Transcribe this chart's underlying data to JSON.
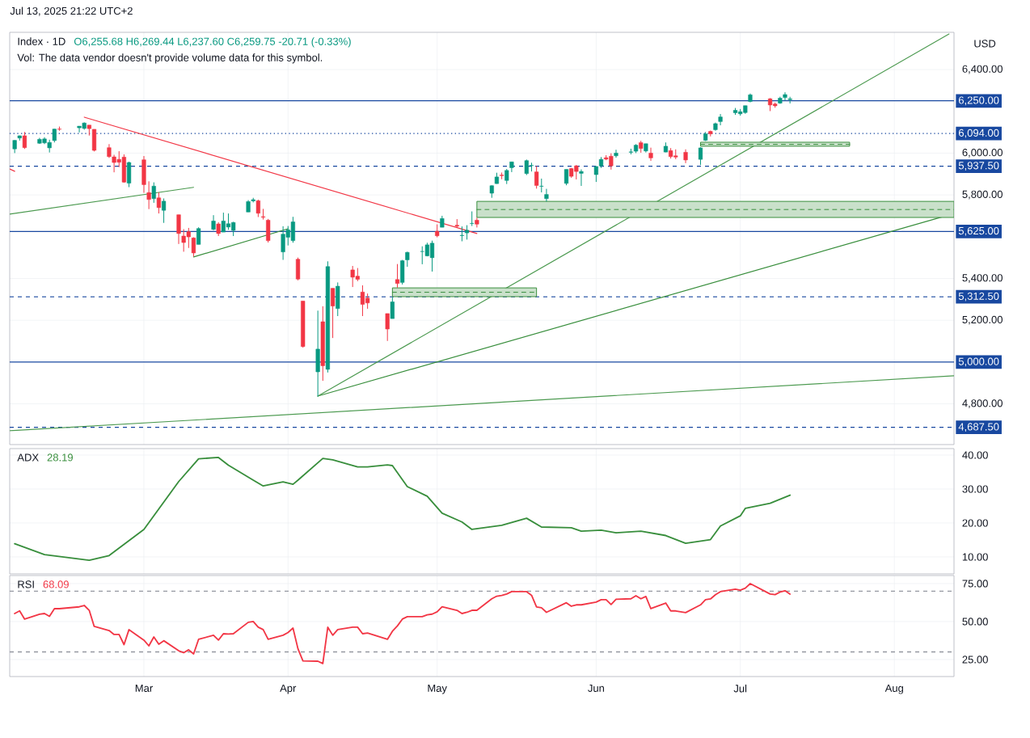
{
  "chart_data": [
    {
      "type": "candlestick",
      "title": "Index · 1D",
      "ylabel": "USD",
      "annotations": [
        "O6,255.68 H6,269.44 L6,237.60 C6,259.75 -20.71 (-0.33%)",
        "Vol: The data vendor doesn't provide volume data for this symbol.",
        "Jul 13, 2025 21:22 UTC+2"
      ],
      "x": [
        "2025-02-05",
        "2025-02-06",
        "2025-02-07",
        "2025-02-10",
        "2025-02-11",
        "2025-02-12",
        "2025-02-13",
        "2025-02-14",
        "2025-02-18",
        "2025-02-19",
        "2025-02-20",
        "2025-02-21",
        "2025-02-24",
        "2025-02-25",
        "2025-02-26",
        "2025-02-27",
        "2025-02-28",
        "2025-03-03",
        "2025-03-04",
        "2025-03-05",
        "2025-03-06",
        "2025-03-07",
        "2025-03-10",
        "2025-03-11",
        "2025-03-12",
        "2025-03-13",
        "2025-03-14",
        "2025-03-17",
        "2025-03-18",
        "2025-03-19",
        "2025-03-20",
        "2025-03-21",
        "2025-03-24",
        "2025-03-25",
        "2025-03-26",
        "2025-03-27",
        "2025-03-28",
        "2025-03-31",
        "2025-04-01",
        "2025-04-02",
        "2025-04-03",
        "2025-04-04",
        "2025-04-07",
        "2025-04-08",
        "2025-04-09",
        "2025-04-10",
        "2025-04-11",
        "2025-04-14",
        "2025-04-15",
        "2025-04-16",
        "2025-04-17",
        "2025-04-21",
        "2025-04-22",
        "2025-04-23",
        "2025-04-24",
        "2025-04-25",
        "2025-04-28",
        "2025-04-29",
        "2025-04-30",
        "2025-05-01",
        "2025-05-02",
        "2025-05-05",
        "2025-05-06",
        "2025-05-07",
        "2025-05-08",
        "2025-05-09",
        "2025-05-12",
        "2025-05-13",
        "2025-05-14",
        "2025-05-15",
        "2025-05-16",
        "2025-05-19",
        "2025-05-20",
        "2025-05-21",
        "2025-05-22",
        "2025-05-23",
        "2025-05-27",
        "2025-05-28",
        "2025-05-29",
        "2025-05-30",
        "2025-06-02",
        "2025-06-03",
        "2025-06-04",
        "2025-06-05",
        "2025-06-06",
        "2025-06-09",
        "2025-06-10",
        "2025-06-11",
        "2025-06-12",
        "2025-06-13",
        "2025-06-16",
        "2025-06-17",
        "2025-06-18",
        "2025-06-20",
        "2025-06-23",
        "2025-06-24",
        "2025-06-25",
        "2025-06-26",
        "2025-06-27",
        "2025-06-30",
        "2025-07-01",
        "2025-07-02",
        "2025-07-03",
        "2025-07-07",
        "2025-07-08",
        "2025-07-09",
        "2025-07-10",
        "2025-07-11"
      ],
      "ohlc": [
        [
          6020,
          6062,
          6000,
          6061
        ],
        [
          6072,
          6084,
          6060,
          6083
        ],
        [
          6083,
          6101,
          6020,
          6026
        ],
        [
          6047,
          6073,
          6044,
          6066
        ],
        [
          6049,
          6076,
          6043,
          6068
        ],
        [
          6025,
          6064,
          6003,
          6051
        ],
        [
          6060,
          6116,
          6051,
          6115
        ],
        [
          6115,
          6127,
          6107,
          6114
        ],
        [
          6121,
          6129,
          6099,
          6129
        ],
        [
          6118,
          6147,
          6112,
          6144
        ],
        [
          6134,
          6134,
          6084,
          6117
        ],
        [
          6114,
          6114,
          6008,
          6013
        ],
        [
          6026,
          6043,
          5977,
          5983
        ],
        [
          5982,
          5992,
          5908,
          5955
        ],
        [
          5970,
          6009,
          5933,
          5956
        ],
        [
          5981,
          5994,
          5858,
          5861
        ],
        [
          5856,
          5959,
          5837,
          5955
        ],
        [
          5968,
          5986,
          5810,
          5849
        ],
        [
          5811,
          5865,
          5732,
          5778
        ],
        [
          5782,
          5860,
          5762,
          5842
        ],
        [
          5786,
          5812,
          5711,
          5739
        ],
        [
          5726,
          5783,
          5666,
          5770
        ],
        [
          5705,
          5705,
          5565,
          5615
        ],
        [
          5603,
          5636,
          5528,
          5572
        ],
        [
          5624,
          5642,
          5546,
          5599
        ],
        [
          5594,
          5597,
          5505,
          5522
        ],
        [
          5563,
          5645,
          5563,
          5639
        ],
        [
          5635,
          5703,
          5631,
          5675
        ],
        [
          5661,
          5669,
          5603,
          5615
        ],
        [
          5622,
          5715,
          5622,
          5675
        ],
        [
          5646,
          5711,
          5633,
          5662
        ],
        [
          5630,
          5671,
          5603,
          5668
        ],
        [
          5718,
          5775,
          5718,
          5768
        ],
        [
          5771,
          5786,
          5764,
          5777
        ],
        [
          5772,
          5777,
          5694,
          5712
        ],
        [
          5696,
          5733,
          5682,
          5693
        ],
        [
          5679,
          5685,
          5572,
          5581
        ],
        [
          5527,
          5650,
          5489,
          5612
        ],
        [
          5597,
          5651,
          5558,
          5633
        ],
        [
          5581,
          5695,
          5571,
          5671
        ],
        [
          5492,
          5500,
          5391,
          5397
        ],
        [
          5292,
          5292,
          5069,
          5074
        ],
        [
          4953,
          5246,
          4835,
          5062
        ],
        [
          5193,
          5267,
          4910,
          4982
        ],
        [
          4965,
          5482,
          4950,
          5457
        ],
        [
          5353,
          5353,
          5115,
          5268
        ],
        [
          5256,
          5381,
          5220,
          5363
        ],
        [
          5441,
          5460,
          5359,
          5406
        ],
        [
          5411,
          5450,
          5387,
          5396
        ],
        [
          5335,
          5367,
          5220,
          5276
        ],
        [
          5306,
          5328,
          5255,
          5283
        ],
        [
          5232,
          5232,
          5101,
          5158
        ],
        [
          5208,
          5309,
          5208,
          5288
        ],
        [
          5395,
          5469,
          5356,
          5376
        ],
        [
          5381,
          5489,
          5371,
          5485
        ],
        [
          5489,
          5528,
          5456,
          5525
        ],
        [
          5529,
          5554,
          5468,
          5529
        ],
        [
          5508,
          5571,
          5506,
          5561
        ],
        [
          5499,
          5581,
          5433,
          5569
        ],
        [
          5626,
          5659,
          5597,
          5604
        ],
        [
          5645,
          5700,
          5645,
          5687
        ],
        [
          5655,
          5684,
          5642,
          5650
        ],
        [
          5605,
          5649,
          5578,
          5607
        ],
        [
          5618,
          5655,
          5586,
          5631
        ],
        [
          5663,
          5721,
          5651,
          5664
        ],
        [
          5679,
          5691,
          5644,
          5660
        ],
        [
          5808,
          5846,
          5786,
          5844
        ],
        [
          5854,
          5906,
          5853,
          5886
        ],
        [
          5895,
          5907,
          5875,
          5892
        ],
        [
          5869,
          5924,
          5852,
          5917
        ],
        [
          5930,
          5959,
          5909,
          5958
        ],
        [
          5902,
          5969,
          5895,
          5964
        ],
        [
          5940,
          5954,
          5912,
          5941
        ],
        [
          5910,
          5938,
          5830,
          5845
        ],
        [
          5841,
          5878,
          5812,
          5842
        ],
        [
          5782,
          5829,
          5768,
          5802
        ],
        [
          5855,
          5922,
          5846,
          5922
        ],
        [
          5926,
          5929,
          5882,
          5889
        ],
        [
          5939,
          5943,
          5874,
          5912
        ],
        [
          5903,
          5922,
          5843,
          5912
        ],
        [
          5897,
          5937,
          5862,
          5936
        ],
        [
          5939,
          5981,
          5929,
          5970
        ],
        [
          5978,
          5990,
          5966,
          5971
        ],
        [
          5985,
          5999,
          5921,
          5939
        ],
        [
          5987,
          6016,
          5978,
          6000
        ],
        [
          6004,
          6021,
          5994,
          6006
        ],
        [
          6009,
          6043,
          6000,
          6038
        ],
        [
          6050,
          6059,
          6002,
          6022
        ],
        [
          6010,
          6045,
          6003,
          6045
        ],
        [
          6000,
          6026,
          5963,
          5977
        ],
        [
          6005,
          6051,
          6004,
          6033
        ],
        [
          6012,
          6024,
          5974,
          5983
        ],
        [
          5987,
          6018,
          5971,
          5981
        ],
        [
          6004,
          6018,
          5952,
          5967
        ],
        [
          5970,
          6028,
          5943,
          6025
        ],
        [
          6061,
          6101,
          6058,
          6092
        ],
        [
          6104,
          6108,
          6080,
          6092
        ],
        [
          6112,
          6146,
          6107,
          6141
        ],
        [
          6151,
          6187,
          6133,
          6173
        ],
        [
          6193,
          6216,
          6183,
          6205
        ],
        [
          6188,
          6211,
          6179,
          6198
        ],
        [
          6194,
          6227,
          6188,
          6227
        ],
        [
          6247,
          6285,
          6243,
          6279
        ],
        [
          6260,
          6263,
          6201,
          6230
        ],
        [
          6235,
          6242,
          6217,
          6226
        ],
        [
          6239,
          6270,
          6236,
          6263
        ],
        [
          6266,
          6291,
          6251,
          6280
        ],
        [
          6255.68,
          6269.44,
          6237.6,
          6259.75
        ]
      ],
      "series": [
        {
          "type": "line",
          "color": "#f23645",
          "x": [
            "2025-02-19",
            "2025-05-09"
          ],
          "values": [
            6172,
            5615
          ]
        },
        {
          "type": "line",
          "color": "#f23645",
          "x": [
            "2025-02-04",
            "2025-02-05"
          ],
          "values": [
            5924,
            5913
          ]
        },
        {
          "type": "line",
          "color": "#4c9a50",
          "x": [
            "2025-02-04",
            "2025-03-13"
          ],
          "values": [
            5708,
            5836
          ]
        },
        {
          "type": "line",
          "color": "#388e3c",
          "x": [
            "2025-03-13",
            "2025-04-01"
          ],
          "values": [
            5503,
            5638
          ]
        },
        {
          "type": "line",
          "color": "#388e3c",
          "x": [
            "2025-04-07",
            "2025-08-13"
          ],
          "values": [
            4837,
            5711
          ]
        },
        {
          "type": "line",
          "color": "#4c9a50",
          "x": [
            "2025-04-07",
            "2025-08-12"
          ],
          "values": [
            4837,
            6570
          ]
        },
        {
          "type": "line",
          "color": "#4c9a50",
          "x": [
            "2025-02-04",
            "2025-08-13"
          ],
          "values": [
            4671,
            4934
          ]
        },
        {
          "type": "line",
          "line_style": "dashed",
          "color": "#388e3c",
          "x": [
            "2025-04-22",
            "2025-05-21"
          ],
          "values": [
            5334,
            5334
          ],
          "lower": [
            5313,
            5313
          ],
          "upper": [
            5355,
            5355
          ]
        },
        {
          "type": "line",
          "line_style": "dashed",
          "color": "#388e3c",
          "x": [
            "2025-05-09",
            "2025-08-13"
          ],
          "values": [
            5730,
            5730
          ],
          "lower": [
            5692,
            5692
          ],
          "upper": [
            5769,
            5769
          ]
        },
        {
          "type": "line",
          "line_style": "dashed",
          "color": "#388e3c",
          "x": [
            "2025-06-23",
            "2025-07-23"
          ],
          "values": [
            6042,
            6042
          ],
          "lower": [
            6033,
            6033
          ],
          "upper": [
            6052,
            6052
          ]
        }
      ],
      "ref_lines": [
        {
          "axis": "y",
          "value": 6250,
          "label": "6,250.00",
          "color": "#1848a0",
          "line_style": "solid"
        },
        {
          "axis": "y",
          "value": 6094,
          "label": "6,094.00",
          "color": "#1848a0",
          "line_style": "dotted"
        },
        {
          "axis": "y",
          "value": 5937.5,
          "label": "5,937.50",
          "color": "#1848a0",
          "line_style": "dashed"
        },
        {
          "axis": "y",
          "value": 5625,
          "label": "5,625.00",
          "color": "#1848a0",
          "line_style": "solid"
        },
        {
          "axis": "y",
          "value": 5312.5,
          "label": "5,312.50",
          "color": "#1848a0",
          "line_style": "dashed"
        },
        {
          "axis": "y",
          "value": 5000,
          "label": "5,000.00",
          "color": "#1848a0",
          "line_style": "solid"
        },
        {
          "axis": "y",
          "value": 4687.5,
          "label": "4,687.50",
          "color": "#1848a0",
          "line_style": "dashed"
        }
      ],
      "xlim": [
        "2025-02-04",
        "2025-08-13"
      ],
      "ylim": [
        4605,
        6578
      ],
      "xticks": [
        {
          "value": "2025-03-03",
          "label": null
        },
        {
          "value": "2025-04-01",
          "label": null
        },
        {
          "value": "2025-05-01",
          "label": null
        },
        {
          "value": "2025-06-02",
          "label": null
        },
        {
          "value": "2025-07-01",
          "label": null
        },
        {
          "value": "2025-08-01",
          "label": null
        }
      ],
      "yticks": [
        {
          "value": 4800,
          "label": "4,800.00"
        },
        {
          "value": 5200,
          "label": "5,200.00"
        },
        {
          "value": 5400,
          "label": "5,400.00"
        },
        {
          "value": 5800,
          "label": "5,800.00"
        },
        {
          "value": 6000,
          "label": "6,000.00"
        },
        {
          "value": 6400,
          "label": "6,400.00"
        }
      ],
      "tick_labels": "y",
      "grid": true
    },
    {
      "type": "line",
      "title": "ADX",
      "annotations": [
        "28.19"
      ],
      "series": [
        {
          "color": "#388e3c",
          "x": [
            "2025-02-05",
            "2025-02-11",
            "2025-02-20",
            "2025-02-24",
            "2025-03-03",
            "2025-03-10",
            "2025-03-14",
            "2025-03-18",
            "2025-03-20",
            "2025-03-25",
            "2025-03-27",
            "2025-03-31",
            "2025-04-02",
            "2025-04-03",
            "2025-04-08",
            "2025-04-10",
            "2025-04-15",
            "2025-04-17",
            "2025-04-21",
            "2025-04-22",
            "2025-04-25",
            "2025-04-29",
            "2025-05-02",
            "2025-05-06",
            "2025-05-08",
            "2025-05-14",
            "2025-05-19",
            "2025-05-22",
            "2025-05-28",
            "2025-05-30",
            "2025-06-03",
            "2025-06-06",
            "2025-06-11",
            "2025-06-16",
            "2025-06-20",
            "2025-06-25",
            "2025-06-27",
            "2025-07-01",
            "2025-07-02",
            "2025-07-07",
            "2025-07-10",
            "2025-07-11"
          ],
          "values": [
            13.9,
            10.7,
            9.0,
            10.4,
            18.1,
            32.2,
            38.9,
            39.3,
            37.0,
            32.6,
            30.9,
            32.1,
            31.4,
            32.6,
            39.0,
            38.6,
            36.5,
            36.5,
            37.1,
            36.9,
            30.7,
            27.9,
            22.9,
            20.3,
            18.1,
            19.3,
            21.4,
            18.8,
            18.6,
            17.6,
            17.9,
            17.1,
            17.6,
            16.3,
            14.0,
            15.1,
            19.1,
            22.1,
            24.3,
            25.8,
            27.6,
            28.2
          ]
        }
      ],
      "xlim": [
        "2025-02-04",
        "2025-08-13"
      ],
      "ylim": [
        5,
        41.9
      ],
      "xticks": [
        {
          "value": "2025-03-03",
          "label": null
        },
        {
          "value": "2025-04-01",
          "label": null
        },
        {
          "value": "2025-05-01",
          "label": null
        },
        {
          "value": "2025-06-02",
          "label": null
        },
        {
          "value": "2025-07-01",
          "label": null
        },
        {
          "value": "2025-08-01",
          "label": null
        }
      ],
      "yticks": [
        {
          "value": 10,
          "label": "10.00"
        },
        {
          "value": 20,
          "label": "20.00"
        },
        {
          "value": 30,
          "label": "30.00"
        },
        {
          "value": 40,
          "label": "40.00"
        }
      ],
      "tick_labels": "y",
      "grid": true
    },
    {
      "type": "line",
      "title": "RSI",
      "annotations": [
        "68.09"
      ],
      "x": [
        "2025-02-05",
        "2025-02-06",
        "2025-02-07",
        "2025-02-10",
        "2025-02-11",
        "2025-02-12",
        "2025-02-13",
        "2025-02-14",
        "2025-02-18",
        "2025-02-19",
        "2025-02-20",
        "2025-02-21",
        "2025-02-24",
        "2025-02-25",
        "2025-02-26",
        "2025-02-27",
        "2025-02-28",
        "2025-03-03",
        "2025-03-04",
        "2025-03-05",
        "2025-03-06",
        "2025-03-07",
        "2025-03-10",
        "2025-03-11",
        "2025-03-12",
        "2025-03-13",
        "2025-03-14",
        "2025-03-17",
        "2025-03-18",
        "2025-03-19",
        "2025-03-20",
        "2025-03-21",
        "2025-03-24",
        "2025-03-25",
        "2025-03-26",
        "2025-03-27",
        "2025-03-28",
        "2025-03-31",
        "2025-04-01",
        "2025-04-02",
        "2025-04-03",
        "2025-04-04",
        "2025-04-07",
        "2025-04-08",
        "2025-04-09",
        "2025-04-10",
        "2025-04-11",
        "2025-04-14",
        "2025-04-15",
        "2025-04-16",
        "2025-04-17",
        "2025-04-21",
        "2025-04-22",
        "2025-04-23",
        "2025-04-24",
        "2025-04-25",
        "2025-04-28",
        "2025-04-29",
        "2025-04-30",
        "2025-05-01",
        "2025-05-02",
        "2025-05-05",
        "2025-05-06",
        "2025-05-07",
        "2025-05-08",
        "2025-05-09",
        "2025-05-12",
        "2025-05-13",
        "2025-05-14",
        "2025-05-15",
        "2025-05-16",
        "2025-05-19",
        "2025-05-20",
        "2025-05-21",
        "2025-05-22",
        "2025-05-23",
        "2025-05-27",
        "2025-05-28",
        "2025-05-29",
        "2025-05-30",
        "2025-06-02",
        "2025-06-03",
        "2025-06-04",
        "2025-06-05",
        "2025-06-06",
        "2025-06-09",
        "2025-06-10",
        "2025-06-11",
        "2025-06-12",
        "2025-06-13",
        "2025-06-16",
        "2025-06-17",
        "2025-06-18",
        "2025-06-20",
        "2025-06-23",
        "2025-06-24",
        "2025-06-25",
        "2025-06-26",
        "2025-06-27",
        "2025-06-30",
        "2025-07-01",
        "2025-07-02",
        "2025-07-03",
        "2025-07-07",
        "2025-07-08",
        "2025-07-09",
        "2025-07-10",
        "2025-07-11"
      ],
      "series": [
        {
          "color": "#f23645",
          "values": [
            55.3,
            57.0,
            51.6,
            54.8,
            55.3,
            53.4,
            58.5,
            58.5,
            59.7,
            60.6,
            57.4,
            46.8,
            44.1,
            41.5,
            41.5,
            34.8,
            44.7,
            37.8,
            34.0,
            39.9,
            35.1,
            37.4,
            30.8,
            29.5,
            31.4,
            28.7,
            38.3,
            41.0,
            37.8,
            42.0,
            41.8,
            42.0,
            49.5,
            50.0,
            46.3,
            44.7,
            38.3,
            41.0,
            42.8,
            45.7,
            32.1,
            24.1,
            23.9,
            22.4,
            46.3,
            41.0,
            44.7,
            46.3,
            46.3,
            42.0,
            42.5,
            38.3,
            43.6,
            47.1,
            51.6,
            53.2,
            53.2,
            54.4,
            54.9,
            56.4,
            59.7,
            57.4,
            55.3,
            56.1,
            57.4,
            57.4,
            65.0,
            66.7,
            67.2,
            68.1,
            69.7,
            69.7,
            67.3,
            59.6,
            59.1,
            56.1,
            62.4,
            60.1,
            61.0,
            61.0,
            62.8,
            64.4,
            64.4,
            61.2,
            64.7,
            65.0,
            67.0,
            65.0,
            66.5,
            58.5,
            62.2,
            57.0,
            57.0,
            55.9,
            61.0,
            64.4,
            64.9,
            67.7,
            69.7,
            71.3,
            70.7,
            72.0,
            75.0,
            68.1,
            67.7,
            69.4,
            70.3,
            68.1
          ]
        }
      ],
      "ref_lines": [
        {
          "axis": "y",
          "value": 70,
          "color": "#9598a1",
          "line_style": "dashed"
        },
        {
          "axis": "y",
          "value": 30,
          "color": "#9598a1",
          "line_style": "dashed"
        }
      ],
      "xlim": [
        "2025-02-04",
        "2025-08-13"
      ],
      "ylim": [
        13.8,
        80.3
      ],
      "xticks": [
        {
          "value": "2025-03-03",
          "label": "Mar"
        },
        {
          "value": "2025-04-01",
          "label": "Apr"
        },
        {
          "value": "2025-05-01",
          "label": "May"
        },
        {
          "value": "2025-06-02",
          "label": "Jun"
        },
        {
          "value": "2025-07-01",
          "label": "Jul"
        },
        {
          "value": "2025-08-01",
          "label": "Aug"
        }
      ],
      "yticks": [
        {
          "value": 25,
          "label": "25.00"
        },
        {
          "value": 50,
          "label": "50.00"
        },
        {
          "value": 75,
          "label": "75.00"
        }
      ],
      "grid": true
    }
  ]
}
